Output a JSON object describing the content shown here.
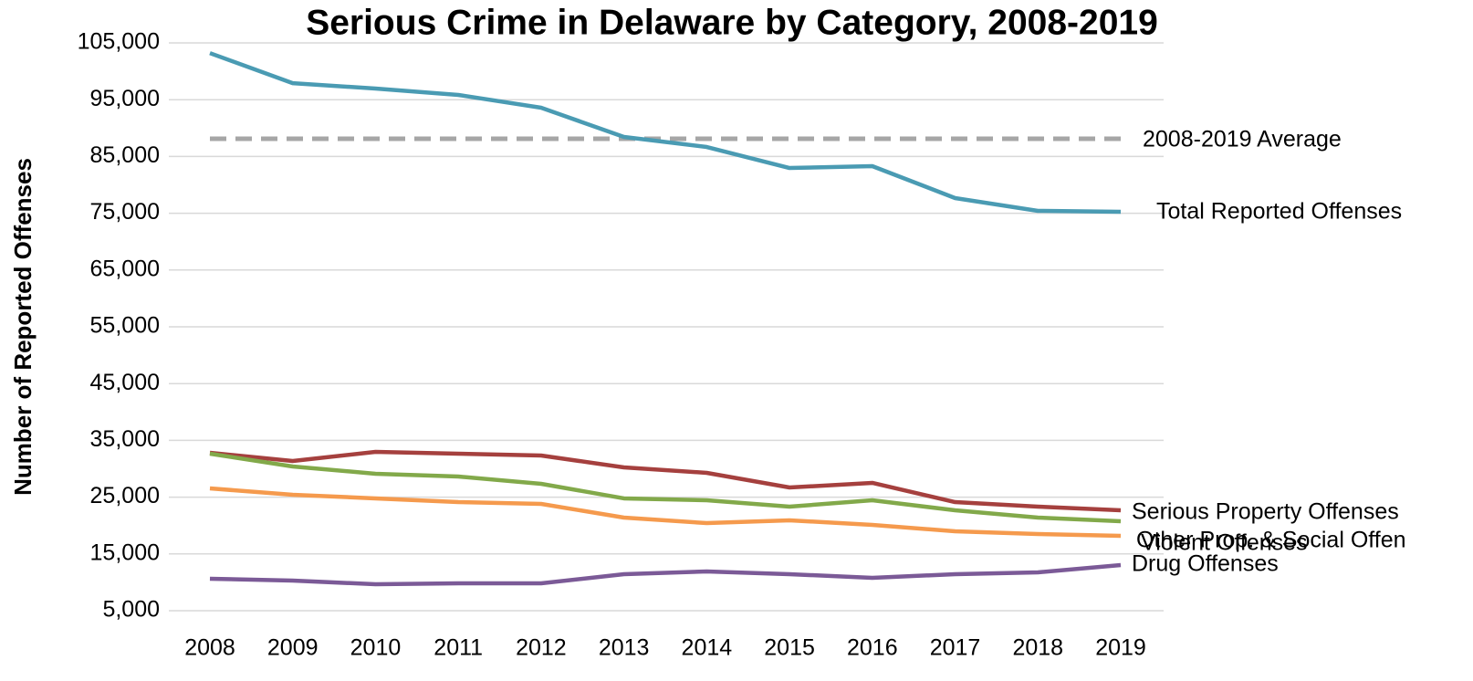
{
  "chart_data": {
    "type": "line",
    "title": "Serious Crime in Delaware by Category, 2008-2019",
    "y_axis_label": "Number of Reported Offenses",
    "categories": [
      "2008",
      "2009",
      "2010",
      "2011",
      "2012",
      "2013",
      "2014",
      "2015",
      "2016",
      "2017",
      "2018",
      "2019"
    ],
    "series": [
      {
        "name": "Total Reported Offenses",
        "color": "#4a9bb3",
        "values": [
          103200,
          97900,
          96960,
          95840,
          93590,
          88440,
          86670,
          82970,
          83300,
          77670,
          75420,
          75260
        ]
      },
      {
        "name": "Serious Property Offenses",
        "color": "#a5403e",
        "values": [
          32810,
          31370,
          32970,
          32650,
          32330,
          30240,
          29280,
          26700,
          27510,
          24130,
          23330,
          22680
        ]
      },
      {
        "name": "Other Prop. & Social Offen",
        "color": "#82a94a",
        "values": [
          32650,
          30400,
          29120,
          28630,
          27350,
          24780,
          24450,
          23330,
          24450,
          22680,
          21400,
          20760
        ]
      },
      {
        "name": "Violent Offenses",
        "color": "#f59a4d",
        "values": [
          26540,
          25420,
          24780,
          24130,
          23810,
          21400,
          20430,
          20920,
          20110,
          18990,
          18500,
          18180
        ]
      },
      {
        "name": "Drug Offenses",
        "color": "#7b5a97",
        "values": [
          10630,
          10310,
          9660,
          9820,
          9820,
          11430,
          11910,
          11430,
          10790,
          11430,
          11750,
          13040
        ]
      }
    ],
    "reference_line": {
      "name": "2008-2019 Average",
      "value": 88120,
      "color": "#a6a6a6",
      "dashed": true
    },
    "ylim": [
      5000,
      105000
    ],
    "yticks": [
      {
        "value": 5000,
        "label": "5,000"
      },
      {
        "value": 15000,
        "label": "15,000"
      },
      {
        "value": 25000,
        "label": "25,000"
      },
      {
        "value": 35000,
        "label": "35,000"
      },
      {
        "value": 45000,
        "label": "45,000"
      },
      {
        "value": 55000,
        "label": "55,000"
      },
      {
        "value": 65000,
        "label": "65,000"
      },
      {
        "value": 75000,
        "label": "75,000"
      },
      {
        "value": 85000,
        "label": "85,000"
      },
      {
        "value": 95000,
        "label": "95,000"
      },
      {
        "value": 105000,
        "label": "105,000"
      }
    ],
    "grid": true
  }
}
